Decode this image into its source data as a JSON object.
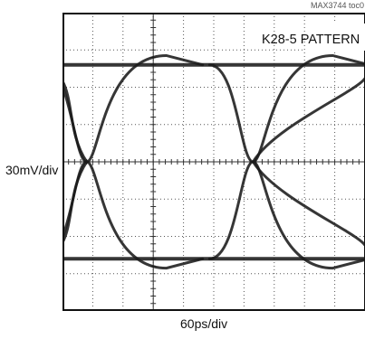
{
  "doc_id": "MAX3744 toc0",
  "chart_data": {
    "type": "line",
    "title": "K28-5 PATTERN",
    "xlabel": "60ps/div",
    "ylabel": "30mV/div",
    "grid": true,
    "x_divisions": 10,
    "y_divisions": 8,
    "xlim": [
      0,
      10
    ],
    "ylim": [
      -4,
      4
    ],
    "eye": {
      "high_level_div": 2.6,
      "low_level_div": -2.6,
      "crossings_div": [
        0.8,
        6.3
      ],
      "left_crossing_div": 0.8,
      "right_crossing_div": 6.3,
      "overshoot_div": 0.25
    }
  }
}
